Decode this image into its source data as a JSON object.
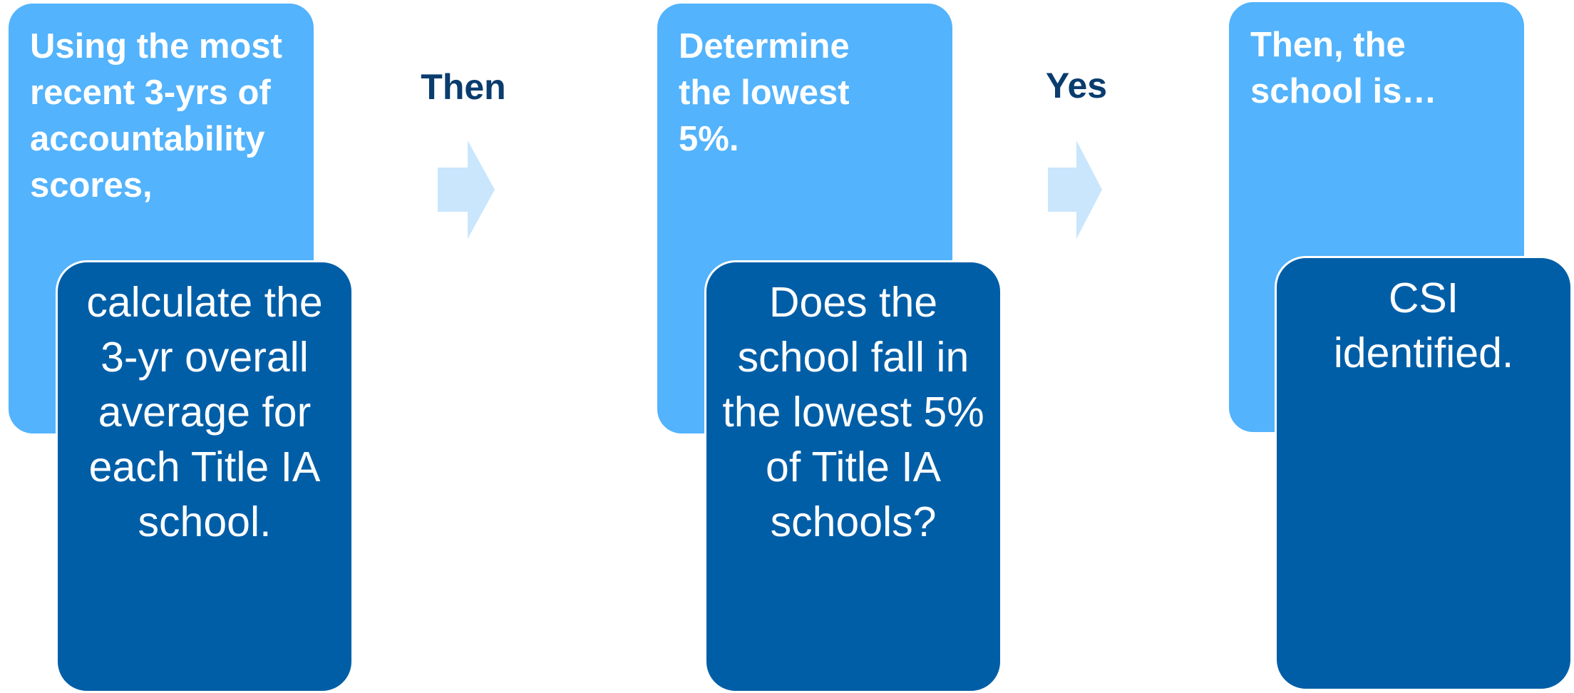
{
  "steps": [
    {
      "header": "Using the most recent 3-yrs of accountability scores,",
      "detail": "calculate the 3-yr overall average for each Title IA school."
    },
    {
      "header": "Determine the lowest 5%.",
      "detail": "Does the school fall in the lowest 5% of Title IA schools?"
    },
    {
      "header": "Then, the school is…",
      "detail": "CSI identified."
    }
  ],
  "connectors": [
    {
      "label": "Then"
    },
    {
      "label": "Yes"
    }
  ],
  "colors": {
    "light_card": "#53b3fc",
    "dark_card": "#005ea7",
    "arrow": "#c9e6fd",
    "connector_text": "#0a3c6e"
  }
}
